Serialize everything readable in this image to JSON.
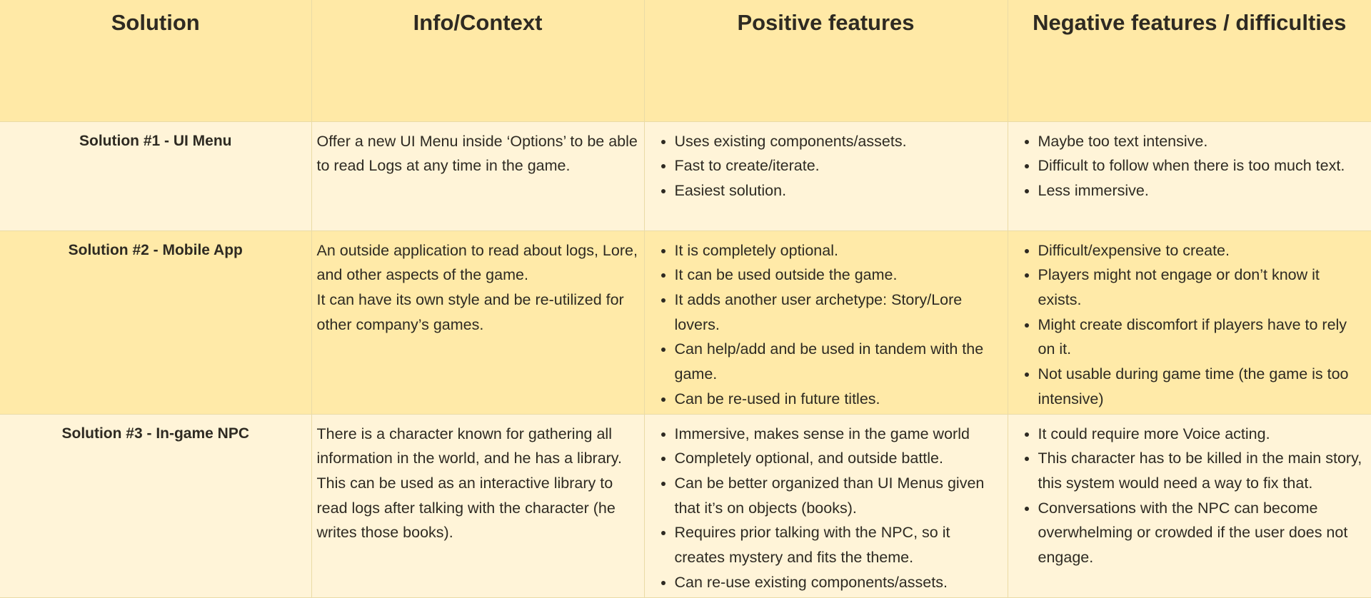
{
  "headers": {
    "solution": "Solution",
    "info": "Info/Context",
    "positive": "Positive features",
    "negative": "Negative features / difficulties"
  },
  "rows": [
    {
      "solution": "Solution #1 - UI Menu",
      "info": [
        "Offer a new UI Menu inside ‘Options’ to be able to read Logs at any time in the game."
      ],
      "positive": [
        "Uses existing components/assets.",
        "Fast to create/iterate.",
        "Easiest solution."
      ],
      "negative": [
        "Maybe too text intensive.",
        "Difficult to follow when there is too much text.",
        "Less immersive."
      ]
    },
    {
      "solution": "Solution #2 - Mobile App",
      "info": [
        "An outside application to read about logs, Lore, and other aspects of the game.",
        "It can have its own style and be re-utilized for other company’s games."
      ],
      "positive": [
        "It is completely optional.",
        "It can be used outside the game.",
        "It adds another user archetype: Story/Lore lovers.",
        "Can help/add and be used in tandem with the game.",
        "Can be re-used in future titles."
      ],
      "negative": [
        "Difficult/expensive to create.",
        "Players might not engage or don’t know it exists.",
        "Might create discomfort if players have to rely on it.",
        "Not usable during game time (the game is too intensive)"
      ]
    },
    {
      "solution": "Solution #3 - In-game NPC",
      "info": [
        "There is a character known for gathering all information in the world, and he has a library. This can be used as an interactive library to read logs after talking with the character (he writes those books)."
      ],
      "positive": [
        "Immersive, makes sense in the game world",
        "Completely optional, and outside battle.",
        "Can be better organized than UI Menus given that it’s on objects (books).",
        "Requires prior talking with the NPC, so it creates mystery and fits the theme.",
        "Can re-use existing components/assets."
      ],
      "negative": [
        "It could require more Voice acting.",
        "This character has to be killed in the main story, this system would need a way to fix that.",
        "Conversations with the NPC can become overwhelming or crowded if the user does not engage."
      ]
    }
  ]
}
